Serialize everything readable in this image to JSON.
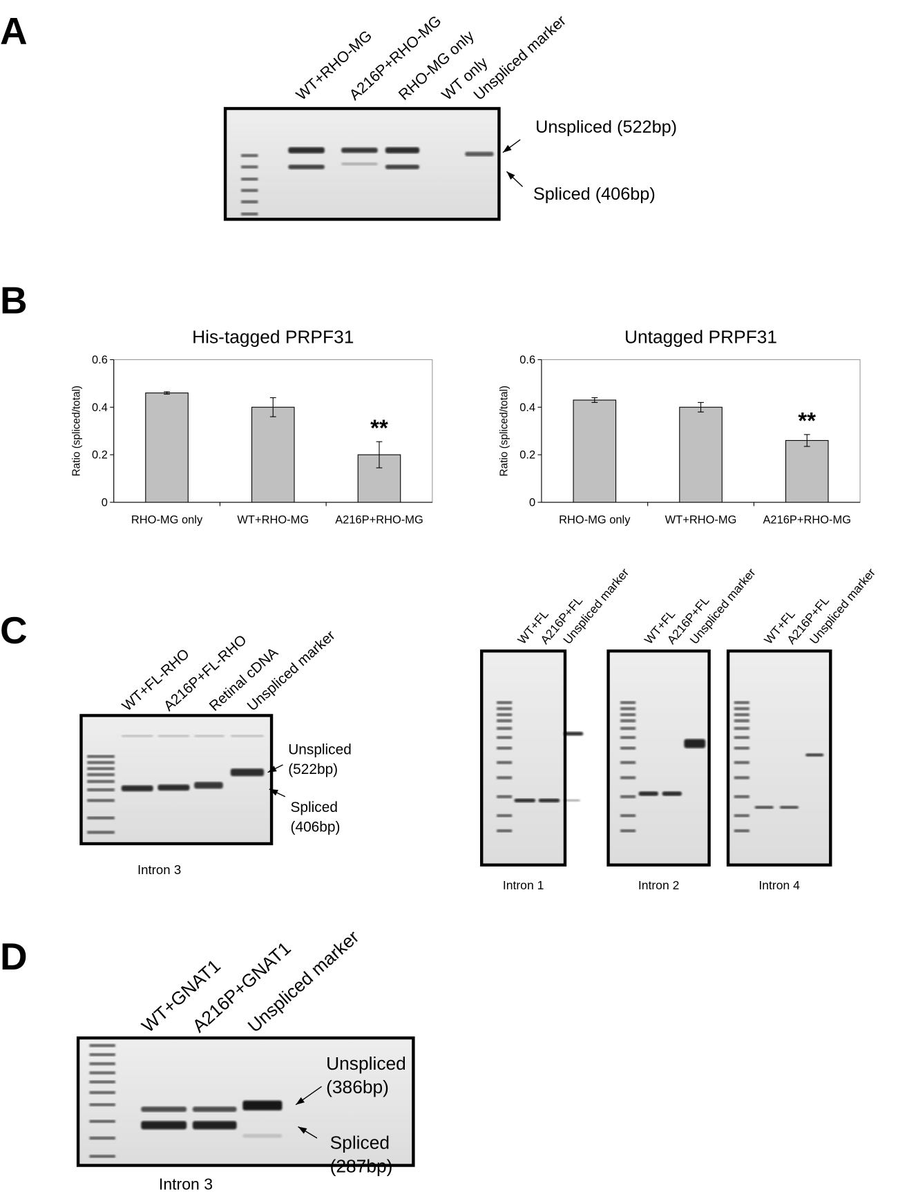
{
  "panels": {
    "A": {
      "letter": "A",
      "lanes": [
        "WT+RHO-MG",
        "A216P+RHO-MG",
        "RHO-MG only",
        "WT only",
        "Unspliced marker"
      ],
      "band_labels": [
        "Unspliced (522bp)",
        "Spliced (406bp)"
      ]
    },
    "B": {
      "letter": "B"
    },
    "C": {
      "letter": "C",
      "left": {
        "lanes": [
          "WT+FL-RHO",
          "A216P+FL-RHO",
          "Retinal cDNA",
          "Unspliced marker"
        ],
        "band_labels": [
          "Unspliced",
          "(522bp)",
          "Spliced",
          "(406bp)"
        ],
        "caption": "Intron 3"
      },
      "right": [
        {
          "lanes": [
            "WT+FL",
            "A216P+FL",
            "Unspliced marker"
          ],
          "caption": "Intron 1"
        },
        {
          "lanes": [
            "WT+FL",
            "A216P+FL",
            "Unspliced marker"
          ],
          "caption": "Intron 2"
        },
        {
          "lanes": [
            "WT+FL",
            "A216P+FL",
            "Unspliced marker"
          ],
          "caption": "Intron 4"
        }
      ]
    },
    "D": {
      "letter": "D",
      "lanes": [
        "WT+GNAT1",
        "A216P+GNAT1",
        "Unspliced marker"
      ],
      "band_labels": [
        "Unspliced",
        "(386bp)",
        "Spliced",
        "(287bp)"
      ],
      "caption": "Intron 3"
    }
  },
  "chart_data": [
    {
      "type": "bar",
      "title": "His-tagged PRPF31",
      "ylabel": "Ratio (spliced/total)",
      "categories": [
        "RHO-MG only",
        "WT+RHO-MG",
        "A216P+RHO-MG"
      ],
      "values": [
        0.46,
        0.4,
        0.2
      ],
      "errors": [
        0.005,
        0.04,
        0.055
      ],
      "color": "#c0c0c0",
      "ylim": [
        0,
        0.6
      ],
      "yticks": [
        0,
        0.2,
        0.4,
        0.6
      ],
      "annotation": {
        "text": "**",
        "category": "A216P+RHO-MG"
      }
    },
    {
      "type": "bar",
      "title": "Untagged PRPF31",
      "ylabel": "Ratio (spliced/total)",
      "categories": [
        "RHO-MG only",
        "WT+RHO-MG",
        "A216P+RHO-MG"
      ],
      "values": [
        0.43,
        0.4,
        0.26
      ],
      "errors": [
        0.01,
        0.02,
        0.025
      ],
      "color": "#c0c0c0",
      "ylim": [
        0,
        0.6
      ],
      "yticks": [
        0,
        0.2,
        0.4,
        0.6
      ],
      "annotation": {
        "text": "**",
        "category": "A216P+RHO-MG"
      }
    }
  ]
}
